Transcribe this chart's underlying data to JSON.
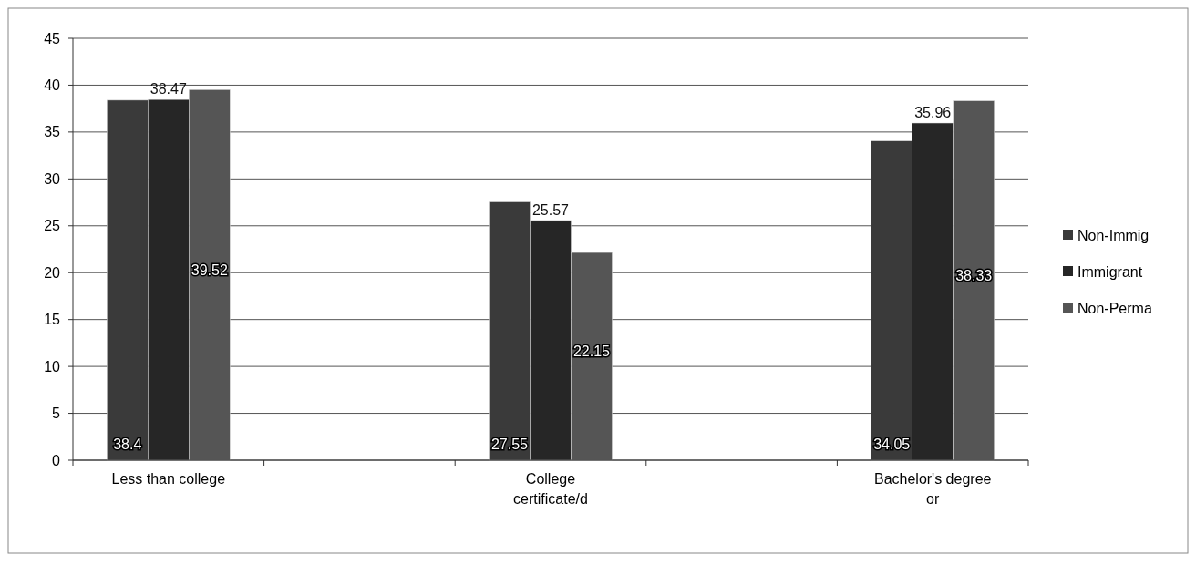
{
  "chart_data": {
    "type": "bar",
    "categories": [
      "Less than college",
      null,
      "College certificate/d",
      null,
      "Bachelor's degree or"
    ],
    "series": [
      {
        "name": "Non-Immig",
        "color": "#3a3a3a",
        "values": [
          38.4,
          null,
          27.55,
          null,
          34.05
        ],
        "value_labels": [
          "38.4",
          null,
          "27.55",
          null,
          "34.05"
        ]
      },
      {
        "name": "Immigrant",
        "color": "#262626",
        "values": [
          38.47,
          null,
          25.57,
          null,
          35.96
        ],
        "value_labels": [
          "38.47",
          null,
          "25.57",
          null,
          "35.96"
        ]
      },
      {
        "name": "Non-Perma",
        "color": "#555555",
        "values": [
          39.52,
          null,
          22.15,
          null,
          38.33
        ],
        "value_labels": [
          "39.52",
          null,
          "22.15",
          null,
          "38.33"
        ]
      }
    ],
    "ylim": [
      0,
      45
    ],
    "yticks": [
      0,
      5,
      10,
      15,
      20,
      25,
      30,
      35,
      40,
      45
    ],
    "grid": "y",
    "legend": "right"
  }
}
